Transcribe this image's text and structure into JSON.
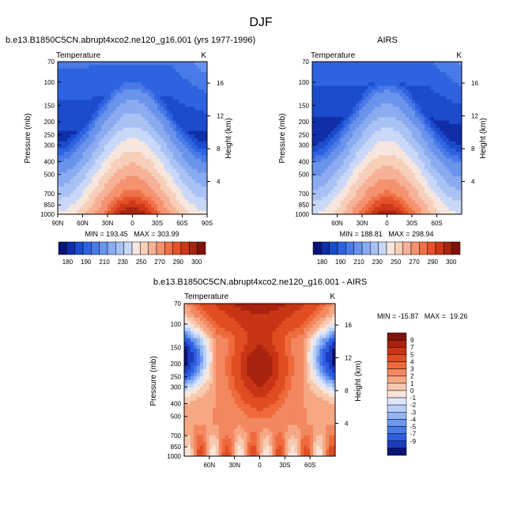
{
  "page": {
    "season": "DJF"
  },
  "colors": {
    "temp_scale": [
      "#0a1475",
      "#0f2ea8",
      "#1c4bcc",
      "#2e63e0",
      "#4a7ae8",
      "#6a93ec",
      "#8aabf0",
      "#a9c2f4",
      "#c9d8f8",
      "#f6e6de",
      "#f7cfb9",
      "#f6b196",
      "#f59270",
      "#ef7247",
      "#e4512a",
      "#cc3718",
      "#a52511",
      "#80120c"
    ],
    "diff_scale": [
      "#0a1475",
      "#1c3bbd",
      "#2e5ee0",
      "#4a7ae8",
      "#6e98ef",
      "#93b4f3",
      "#b9cff7",
      "#dde7fb",
      "#fbe4d8",
      "#f7c9af",
      "#f6a885",
      "#f38860",
      "#ee6a3c",
      "#e04d22",
      "#c73515",
      "#a8220f",
      "#80120c"
    ]
  },
  "chart_data": [
    {
      "type": "heatmap",
      "id": "model",
      "title": "b.e13.B1850C5CN.abrupt4xco2.ne120_g16.001 (yrs 1977-1996)",
      "variable": "Temperature",
      "units": "K",
      "xlabel": "",
      "ylabel": "Pressure (mb)",
      "ylabel_right": "Height (km)",
      "x_ticks": [
        "90N",
        "60N",
        "30N",
        "0",
        "30S",
        "60S",
        "90S"
      ],
      "x_tick_values": [
        90,
        60,
        30,
        0,
        -30,
        -60,
        -90
      ],
      "xlim": [
        90,
        -90
      ],
      "y_ticks": [
        "70",
        "100",
        "150",
        "200",
        "250",
        "300",
        "400",
        "500",
        "700",
        "850",
        "1000"
      ],
      "y_tick_values": [
        70,
        100,
        150,
        200,
        250,
        300,
        400,
        500,
        700,
        850,
        1000
      ],
      "ylim": [
        70,
        1000
      ],
      "height_ticks": [
        "16",
        "12",
        "8",
        "4"
      ],
      "height_tick_values": [
        16,
        12,
        8,
        4
      ],
      "stats_text": "MIN = 193.45   MAX = 303.99",
      "min": 193.45,
      "max": 303.99,
      "colorbar_labels": [
        "180",
        "190",
        "210",
        "230",
        "250",
        "270",
        "290",
        "300"
      ],
      "levels": [
        180,
        185,
        190,
        195,
        200,
        210,
        220,
        230,
        240,
        250,
        260,
        270,
        280,
        285,
        290,
        295,
        300
      ]
    },
    {
      "type": "heatmap",
      "id": "airs",
      "title": "AIRS",
      "variable": "Temperature",
      "units": "K",
      "xlabel": "",
      "ylabel": "Pressure (mb)",
      "ylabel_right": "Height (km)",
      "x_ticks": [
        "60N",
        "30N",
        "0",
        "30S",
        "60S"
      ],
      "x_tick_values": [
        60,
        30,
        0,
        -30,
        -60
      ],
      "xlim": [
        90,
        -90
      ],
      "y_ticks": [
        "70",
        "100",
        "150",
        "200",
        "250",
        "300",
        "400",
        "500",
        "700",
        "850",
        "1000"
      ],
      "y_tick_values": [
        70,
        100,
        150,
        200,
        250,
        300,
        400,
        500,
        700,
        850,
        1000
      ],
      "ylim": [
        70,
        1000
      ],
      "height_ticks": [
        "16",
        "12",
        "8",
        "4"
      ],
      "height_tick_values": [
        16,
        12,
        8,
        4
      ],
      "stats_text": "MIN = 188.81   MAX = 298.94",
      "min": 188.81,
      "max": 298.94,
      "colorbar_labels": [
        "180",
        "190",
        "210",
        "230",
        "250",
        "270",
        "290",
        "300"
      ],
      "levels": [
        180,
        185,
        190,
        195,
        200,
        210,
        220,
        230,
        240,
        250,
        260,
        270,
        280,
        285,
        290,
        295,
        300
      ]
    },
    {
      "type": "heatmap",
      "id": "diff",
      "title": "b.e13.B1850C5CN.abrupt4xco2.ne120_g16.001 - AIRS",
      "variable": "Temperature",
      "units": "K",
      "xlabel": "",
      "ylabel": "Pressure (mb)",
      "ylabel_right": "Height (km)",
      "x_ticks": [
        "60N",
        "30N",
        "0",
        "30S",
        "60S"
      ],
      "x_tick_values": [
        60,
        30,
        0,
        -30,
        -60
      ],
      "xlim": [
        90,
        -90
      ],
      "y_ticks": [
        "70",
        "100",
        "150",
        "200",
        "250",
        "300",
        "400",
        "500",
        "700",
        "850",
        "1000"
      ],
      "y_tick_values": [
        70,
        100,
        150,
        200,
        250,
        300,
        400,
        500,
        700,
        850,
        1000
      ],
      "ylim": [
        70,
        1000
      ],
      "height_ticks": [
        "16",
        "12",
        "8",
        "4"
      ],
      "height_tick_values": [
        16,
        12,
        8,
        4
      ],
      "stats_text": "MIN = -15.87   MAX =  19.26",
      "min": -15.87,
      "max": 19.26,
      "colorbar_labels": [
        "9",
        "7",
        "5",
        "4",
        "3",
        "2",
        "1",
        "0",
        "-1",
        "-2",
        "-3",
        "-4",
        "-5",
        "-7",
        "-9"
      ],
      "colorbar_values": [
        9,
        7,
        5,
        4,
        3,
        2,
        1,
        0,
        -1,
        -2,
        -3,
        -4,
        -5,
        -7,
        -9
      ]
    }
  ]
}
